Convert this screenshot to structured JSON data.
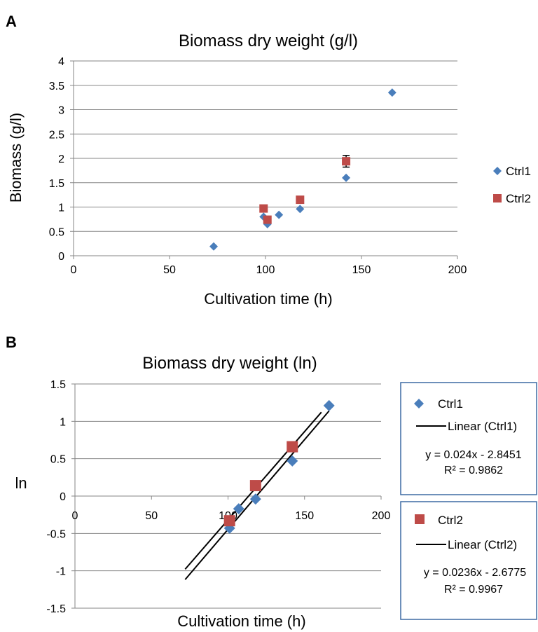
{
  "panels": [
    "A",
    "B"
  ],
  "chart_data": [
    {
      "type": "scatter",
      "title": "Biomass dry weight (g/l)",
      "xlabel": "Cultivation time (h)",
      "ylabel": "Biomass (g/l)",
      "xlim": [
        0,
        200
      ],
      "ylim": [
        0,
        4
      ],
      "x_ticks": [
        0,
        50,
        100,
        150,
        200
      ],
      "y_ticks": [
        0,
        0.5,
        1,
        1.5,
        2,
        2.5,
        3,
        3.5,
        4
      ],
      "y_tick_labels": [
        "0",
        "0.5",
        "1",
        "1.5",
        "2",
        "2.5",
        "3",
        "3.5",
        "4"
      ],
      "grid": "horizontal",
      "legend_position": "right",
      "series": [
        {
          "name": "Ctrl1",
          "marker": "diamond",
          "color": "#4a7ebb",
          "points": [
            [
              73,
              0.19
            ],
            [
              99,
              0.8
            ],
            [
              101,
              0.65
            ],
            [
              107,
              0.84
            ],
            [
              118,
              0.96
            ],
            [
              142,
              1.6
            ],
            [
              166,
              3.35
            ]
          ]
        },
        {
          "name": "Ctrl2",
          "marker": "square",
          "color": "#be4b48",
          "points": [
            [
              99,
              0.97
            ],
            [
              101,
              0.74
            ],
            [
              118,
              1.15
            ],
            [
              142,
              1.94
            ]
          ],
          "error_bars": [
            null,
            null,
            null,
            0.12
          ]
        }
      ]
    },
    {
      "type": "scatter",
      "title": "Biomass dry weight (ln)",
      "xlabel": "Cultivation time (h)",
      "ylabel": "ln",
      "xlim": [
        0,
        200
      ],
      "ylim": [
        -1.5,
        1.5
      ],
      "x_ticks": [
        0,
        50,
        100,
        150,
        200
      ],
      "y_ticks": [
        -1.5,
        -1,
        -0.5,
        0,
        0.5,
        1,
        1.5
      ],
      "y_tick_labels": [
        "-1.5",
        "-1",
        "-0.5",
        "0",
        "0.5",
        "1",
        "1.5"
      ],
      "grid": "horizontal",
      "legend_position": "right",
      "series": [
        {
          "name": "Ctrl1",
          "marker": "diamond",
          "color": "#4a7ebb",
          "points": [
            [
              101,
              -0.43
            ],
            [
              107,
              -0.17
            ],
            [
              118,
              -0.04
            ],
            [
              142,
              0.47
            ],
            [
              166,
              1.21
            ]
          ],
          "trendline": {
            "label": "Linear (Ctrl1)",
            "slope": 0.024,
            "intercept": -2.8451,
            "x_range": [
              72,
              166
            ],
            "equation": "y = 0.024x - 2.8451",
            "r2": "R² = 0.9862"
          }
        },
        {
          "name": "Ctrl2",
          "marker": "square",
          "color": "#be4b48",
          "points": [
            [
              101,
              -0.33
            ],
            [
              118,
              0.14
            ],
            [
              142,
              0.66
            ]
          ],
          "trendline": {
            "label": "Linear (Ctrl2)",
            "slope": 0.0236,
            "intercept": -2.6775,
            "x_range": [
              72,
              161
            ],
            "equation": "y = 0.0236x - 2.6775",
            "r2": "R² = 0.9967"
          }
        }
      ]
    }
  ]
}
